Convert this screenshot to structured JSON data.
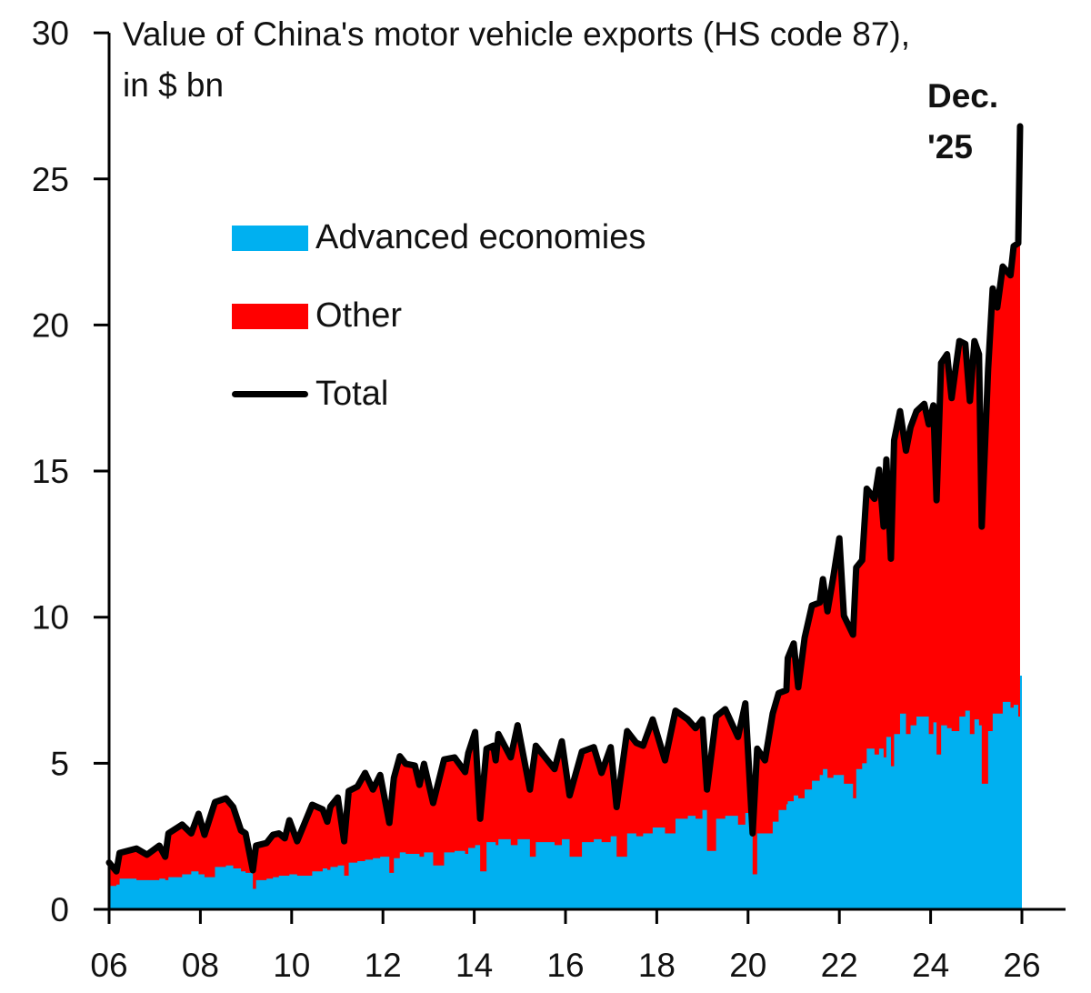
{
  "chart_data": {
    "type": "area",
    "title": "Value of China's motor vehicle exports (HS code 87),",
    "subtitle": "in $ bn",
    "annotation": {
      "text_line1": "Dec.",
      "text_line2": "'25",
      "x": 2025.96,
      "y": 26.8
    },
    "xlabel": "",
    "ylabel": "",
    "xlim": [
      2006,
      2027
    ],
    "ylim": [
      0,
      30
    ],
    "x_ticks": [
      2006,
      2008,
      2010,
      2012,
      2014,
      2016,
      2018,
      2020,
      2022,
      2024,
      2026
    ],
    "x_tick_labels": [
      "06",
      "08",
      "10",
      "12",
      "14",
      "16",
      "18",
      "20",
      "22",
      "24",
      "26"
    ],
    "y_ticks": [
      0,
      5,
      10,
      15,
      20,
      25,
      30
    ],
    "y_tick_labels": [
      "0",
      "5",
      "10",
      "15",
      "20",
      "25",
      "30"
    ],
    "grid": false,
    "legend_position": "upper-left",
    "legend": [
      {
        "name": "Advanced economies",
        "color": "#00B0F0",
        "kind": "area"
      },
      {
        "name": "Other",
        "color": "#FF0000",
        "kind": "area"
      },
      {
        "name": "Total",
        "color": "#000000",
        "kind": "line"
      }
    ],
    "columns": [
      "year",
      "total",
      "advanced_economies"
    ],
    "points": [
      [
        2006.0,
        1.6,
        0.8
      ],
      [
        2006.16,
        1.3,
        0.85
      ],
      [
        2006.23,
        1.93,
        1.05
      ],
      [
        2006.6,
        2.08,
        1.0
      ],
      [
        2006.83,
        1.87,
        1.0
      ],
      [
        2007.1,
        2.18,
        1.05
      ],
      [
        2007.23,
        1.8,
        1.0
      ],
      [
        2007.3,
        2.6,
        1.1
      ],
      [
        2007.6,
        2.9,
        1.2
      ],
      [
        2007.8,
        2.6,
        1.3
      ],
      [
        2007.96,
        3.27,
        1.2
      ],
      [
        2008.09,
        2.55,
        1.1
      ],
      [
        2008.32,
        3.67,
        1.45
      ],
      [
        2008.56,
        3.8,
        1.5
      ],
      [
        2008.72,
        3.5,
        1.4
      ],
      [
        2008.89,
        2.7,
        1.3
      ],
      [
        2008.99,
        2.6,
        1.25
      ],
      [
        2009.15,
        1.34,
        0.7
      ],
      [
        2009.22,
        2.18,
        1.0
      ],
      [
        2009.45,
        2.27,
        1.05
      ],
      [
        2009.59,
        2.55,
        1.1
      ],
      [
        2009.72,
        2.6,
        1.15
      ],
      [
        2009.85,
        2.43,
        1.15
      ],
      [
        2009.95,
        3.05,
        1.2
      ],
      [
        2010.12,
        2.33,
        1.15
      ],
      [
        2010.45,
        3.58,
        1.3
      ],
      [
        2010.68,
        3.42,
        1.4
      ],
      [
        2010.78,
        3.0,
        1.35
      ],
      [
        2010.85,
        3.52,
        1.45
      ],
      [
        2011.01,
        3.83,
        1.5
      ],
      [
        2011.15,
        2.33,
        1.15
      ],
      [
        2011.25,
        4.05,
        1.6
      ],
      [
        2011.44,
        4.2,
        1.65
      ],
      [
        2011.61,
        4.67,
        1.7
      ],
      [
        2011.78,
        4.1,
        1.75
      ],
      [
        2011.94,
        4.6,
        1.8
      ],
      [
        2012.14,
        2.96,
        1.25
      ],
      [
        2012.24,
        4.5,
        1.75
      ],
      [
        2012.37,
        5.24,
        1.95
      ],
      [
        2012.5,
        4.98,
        1.9
      ],
      [
        2012.7,
        4.92,
        1.9
      ],
      [
        2012.8,
        4.26,
        1.8
      ],
      [
        2012.9,
        4.98,
        1.95
      ],
      [
        2013.1,
        3.64,
        1.5
      ],
      [
        2013.34,
        5.13,
        1.95
      ],
      [
        2013.57,
        5.2,
        2.0
      ],
      [
        2013.8,
        4.7,
        1.9
      ],
      [
        2013.87,
        5.35,
        2.1
      ],
      [
        2014.02,
        6.07,
        2.2
      ],
      [
        2014.13,
        3.1,
        1.3
      ],
      [
        2014.27,
        5.5,
        2.3
      ],
      [
        2014.42,
        5.6,
        2.3
      ],
      [
        2014.47,
        5.1,
        2.2
      ],
      [
        2014.53,
        6.0,
        2.4
      ],
      [
        2014.8,
        5.2,
        2.2
      ],
      [
        2014.95,
        6.3,
        2.4
      ],
      [
        2015.22,
        4.1,
        1.8
      ],
      [
        2015.35,
        5.6,
        2.3
      ],
      [
        2015.76,
        4.8,
        2.2
      ],
      [
        2015.92,
        5.75,
        2.4
      ],
      [
        2016.09,
        3.9,
        1.8
      ],
      [
        2016.36,
        5.4,
        2.3
      ],
      [
        2016.62,
        5.55,
        2.4
      ],
      [
        2016.79,
        4.67,
        2.3
      ],
      [
        2016.99,
        5.55,
        2.5
      ],
      [
        2017.12,
        3.5,
        1.8
      ],
      [
        2017.35,
        6.1,
        2.6
      ],
      [
        2017.55,
        5.7,
        2.5
      ],
      [
        2017.7,
        5.6,
        2.6
      ],
      [
        2017.91,
        6.5,
        2.8
      ],
      [
        2018.18,
        5.1,
        2.6
      ],
      [
        2018.41,
        6.8,
        3.1
      ],
      [
        2018.68,
        6.5,
        3.2
      ],
      [
        2018.85,
        6.2,
        3.1
      ],
      [
        2019.0,
        6.5,
        3.4
      ],
      [
        2019.1,
        4.1,
        2.0
      ],
      [
        2019.3,
        6.6,
        3.1
      ],
      [
        2019.5,
        6.85,
        3.2
      ],
      [
        2019.78,
        5.9,
        2.9
      ],
      [
        2019.94,
        7.05,
        3.3
      ],
      [
        2020.1,
        2.6,
        1.2
      ],
      [
        2020.2,
        5.5,
        2.6
      ],
      [
        2020.37,
        5.1,
        2.6
      ],
      [
        2020.54,
        6.7,
        3.0
      ],
      [
        2020.67,
        7.4,
        3.4
      ],
      [
        2020.84,
        7.5,
        3.6
      ],
      [
        2020.87,
        8.6,
        3.7
      ],
      [
        2021.0,
        9.1,
        3.9
      ],
      [
        2021.1,
        7.6,
        3.8
      ],
      [
        2021.24,
        9.3,
        4.1
      ],
      [
        2021.4,
        10.4,
        4.4
      ],
      [
        2021.57,
        10.5,
        4.6
      ],
      [
        2021.64,
        11.3,
        4.8
      ],
      [
        2021.74,
        10.2,
        4.5
      ],
      [
        2021.87,
        11.4,
        4.6
      ],
      [
        2022.0,
        12.7,
        4.6
      ],
      [
        2022.1,
        10.05,
        4.3
      ],
      [
        2022.3,
        9.4,
        3.8
      ],
      [
        2022.37,
        11.7,
        4.8
      ],
      [
        2022.5,
        11.95,
        5.0
      ],
      [
        2022.6,
        14.4,
        5.5
      ],
      [
        2022.77,
        14.05,
        5.3
      ],
      [
        2022.87,
        15.05,
        5.5
      ],
      [
        2022.97,
        13.1,
        5.2
      ],
      [
        2023.03,
        15.4,
        5.9
      ],
      [
        2023.13,
        12.0,
        4.9
      ],
      [
        2023.2,
        16.05,
        6.0
      ],
      [
        2023.33,
        17.05,
        6.7
      ],
      [
        2023.46,
        15.7,
        6.0
      ],
      [
        2023.56,
        16.5,
        6.3
      ],
      [
        2023.69,
        17.05,
        6.6
      ],
      [
        2023.86,
        17.3,
        6.6
      ],
      [
        2023.96,
        16.6,
        6.0
      ],
      [
        2024.06,
        17.25,
        6.4
      ],
      [
        2024.13,
        14.0,
        5.3
      ],
      [
        2024.23,
        18.7,
        6.3
      ],
      [
        2024.36,
        19.0,
        6.2
      ],
      [
        2024.46,
        17.5,
        6.1
      ],
      [
        2024.63,
        19.45,
        6.6
      ],
      [
        2024.76,
        19.35,
        6.8
      ],
      [
        2024.86,
        17.4,
        6.0
      ],
      [
        2024.96,
        19.45,
        6.5
      ],
      [
        2025.06,
        19.0,
        6.3
      ],
      [
        2025.12,
        13.1,
        4.3
      ],
      [
        2025.26,
        18.5,
        6.1
      ],
      [
        2025.36,
        21.25,
        6.7
      ],
      [
        2025.46,
        20.6,
        6.7
      ],
      [
        2025.58,
        22.0,
        7.1
      ],
      [
        2025.75,
        21.7,
        6.9
      ],
      [
        2025.82,
        22.7,
        7.0
      ],
      [
        2025.92,
        22.8,
        6.6
      ],
      [
        2025.96,
        26.8,
        8.0
      ]
    ]
  }
}
